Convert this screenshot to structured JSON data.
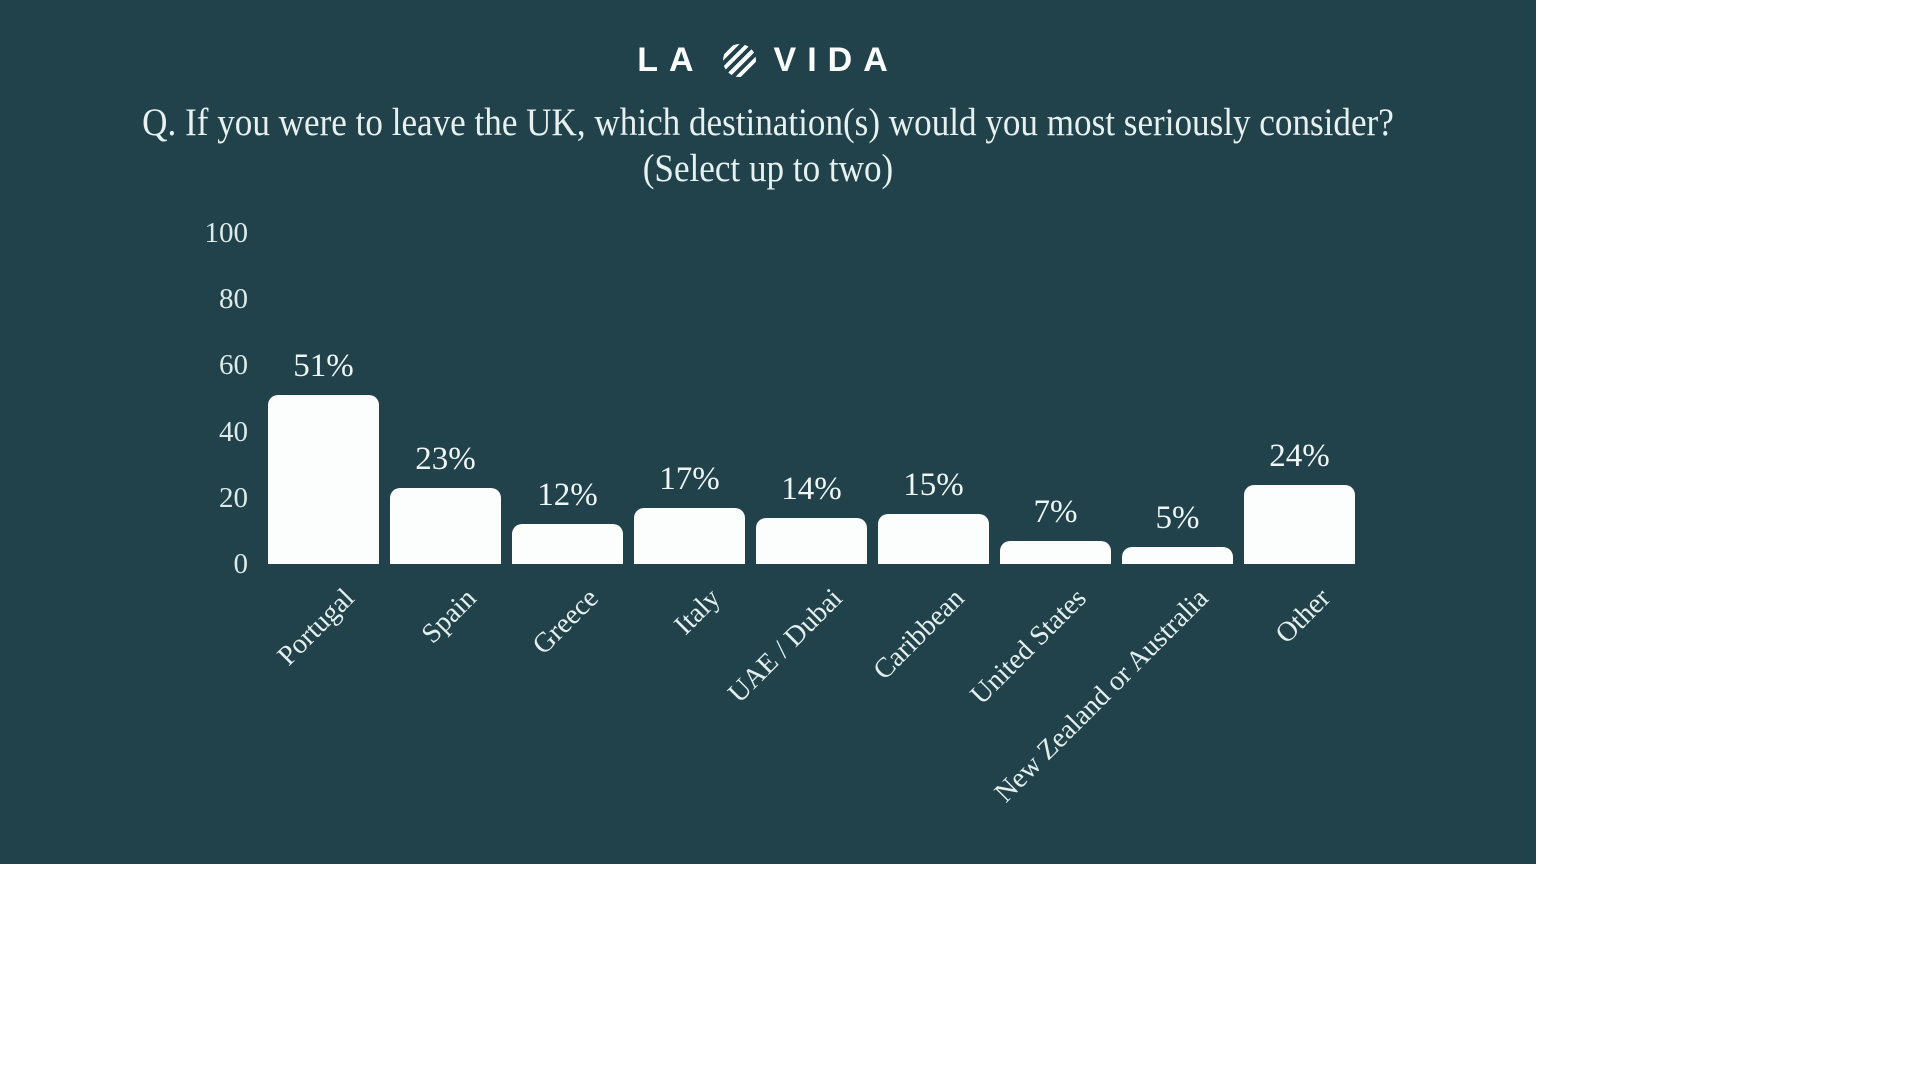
{
  "logo": {
    "text_left": "LA",
    "text_right": "VIDA",
    "icon": "striped-circle",
    "color": "#fbfdfd"
  },
  "title": {
    "line1": "Q. If you were to leave the UK, which destination(s) would you most seriously consider?",
    "line2": "(Select up to two)"
  },
  "chart_data": {
    "type": "bar",
    "title": "Q. If you were to leave the UK, which destination(s) would you most seriously consider? (Select up to two)",
    "categories": [
      "Portugal",
      "Spain",
      "Greece",
      "Italy",
      "UAE / Dubai",
      "Caribbean",
      "United States",
      "New Zealand or Australia",
      "Other"
    ],
    "values": [
      51,
      23,
      12,
      17,
      14,
      15,
      7,
      5,
      24
    ],
    "value_labels": [
      "51%",
      "23%",
      "12%",
      "17%",
      "14%",
      "15%",
      "7%",
      "5%",
      "24%"
    ],
    "xlabel": "",
    "ylabel": "",
    "yticks": [
      0,
      20,
      40,
      60,
      80,
      100
    ],
    "ylim": [
      0,
      100
    ],
    "grid": false,
    "legend": false,
    "xtick_rotation_deg": 45,
    "bar_color": "#fcfdfd",
    "background_color": "#21424a",
    "text_color": "#e7f1ef"
  }
}
